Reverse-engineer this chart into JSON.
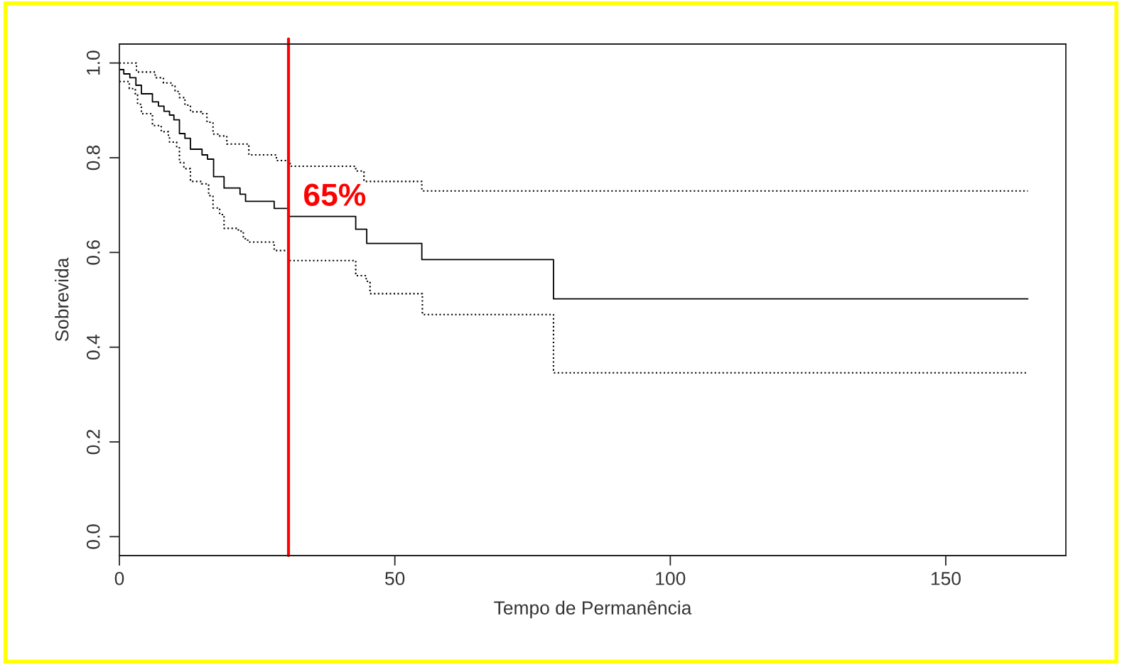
{
  "chart_data": {
    "type": "step",
    "xlabel": "Tempo de Permanência",
    "ylabel": "Sobrevida",
    "xlim": [
      0,
      171.8
    ],
    "ylim": [
      -0.04,
      1.04
    ],
    "xticks": [
      0,
      50,
      100,
      150
    ],
    "yticks": [
      {
        "value": 0,
        "label": "0.0"
      },
      {
        "value": 0.2,
        "label": "0.2"
      },
      {
        "value": 0.4,
        "label": "0.4"
      },
      {
        "value": 0.6,
        "label": "0.6"
      },
      {
        "value": 0.8,
        "label": "0.8"
      },
      {
        "value": 1,
        "label": "1.0"
      }
    ],
    "grid": false,
    "legend": false,
    "series": [
      {
        "color": "#000000",
        "line_style": "solid",
        "x": [
          0,
          0.8,
          1.9,
          3.0,
          4.0,
          6.0,
          7.1,
          8.1,
          9.1,
          9.9,
          10.9,
          11.9,
          12.9,
          15.0,
          16.0,
          17.1,
          19.0,
          21.9,
          22.9,
          28.1,
          30.6,
          42.9,
          44.9,
          54.9,
          78.8,
          164.9
        ],
        "values": [
          0.986,
          0.977,
          0.969,
          0.953,
          0.935,
          0.918,
          0.909,
          0.898,
          0.89,
          0.88,
          0.851,
          0.841,
          0.818,
          0.806,
          0.797,
          0.76,
          0.736,
          0.723,
          0.708,
          0.693,
          0.676,
          0.649,
          0.619,
          0.585,
          0.502,
          0.502
        ]
      },
      {
        "color": "#000000",
        "line_style": "dotted",
        "x": [
          0,
          3.1,
          6.5,
          8.0,
          9.6,
          10.1,
          10.9,
          11.9,
          12.9,
          14.9,
          15.9,
          17.0,
          18.0,
          19.5,
          23.5,
          28.5,
          31.0,
          42.9,
          44.4,
          54.9,
          164.9
        ],
        "values": [
          1.0,
          0.981,
          0.969,
          0.958,
          0.951,
          0.94,
          0.927,
          0.911,
          0.897,
          0.893,
          0.875,
          0.85,
          0.846,
          0.829,
          0.806,
          0.794,
          0.782,
          0.772,
          0.75,
          0.73,
          0.73
        ]
      },
      {
        "color": "#000000",
        "line_style": "dotted",
        "x": [
          0,
          1.8,
          2.9,
          3.3,
          4.0,
          6.0,
          7.6,
          8.9,
          9.1,
          10.4,
          10.9,
          11.7,
          12.9,
          14.9,
          16.2,
          17.0,
          18.2,
          19.0,
          21.6,
          22.5,
          23.3,
          28.1,
          30.8,
          42.9,
          44.8,
          45.5,
          55.0,
          78.8,
          164.9
        ],
        "values": [
          0.961,
          0.946,
          0.933,
          0.913,
          0.893,
          0.868,
          0.855,
          0.845,
          0.833,
          0.821,
          0.79,
          0.777,
          0.75,
          0.745,
          0.72,
          0.694,
          0.68,
          0.651,
          0.645,
          0.629,
          0.622,
          0.604,
          0.583,
          0.551,
          0.539,
          0.513,
          0.469,
          0.346,
          0.346
        ]
      }
    ],
    "ref_lines": [
      {
        "axis": "x",
        "value": 30.7,
        "color": "#ff0000",
        "line_style": "solid"
      }
    ],
    "annotations": [
      "65%"
    ]
  }
}
